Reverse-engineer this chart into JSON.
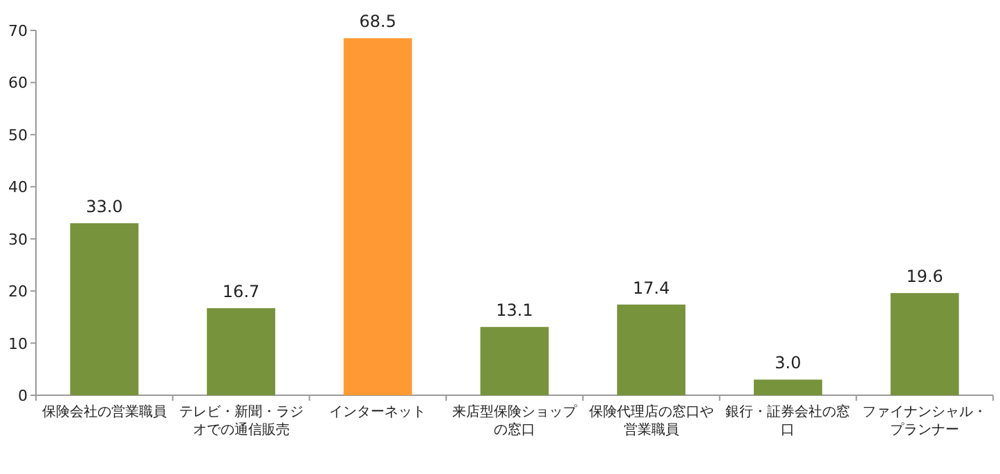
{
  "chart_data": {
    "type": "bar",
    "categories": [
      "保険会社の営業職員",
      "テレビ・新聞・ラジオでの通信販売",
      "インターネット",
      "来店型保険ショップの窓口",
      "保険代理店の窓口や営業職員",
      "銀行・証券会社の窓口",
      "ファイナンシャル・プランナー"
    ],
    "values": [
      33.0,
      16.7,
      68.5,
      13.1,
      17.4,
      3.0,
      19.6
    ],
    "value_labels": [
      "33.0",
      "16.7",
      "68.5",
      "13.1",
      "17.4",
      "3.0",
      "19.6"
    ],
    "colors": [
      "#77933c",
      "#77933c",
      "#ff9933",
      "#77933c",
      "#77933c",
      "#77933c",
      "#77933c"
    ],
    "ylim": [
      0,
      70
    ],
    "yticks": [
      0,
      10,
      20,
      30,
      40,
      50,
      60,
      70
    ]
  }
}
